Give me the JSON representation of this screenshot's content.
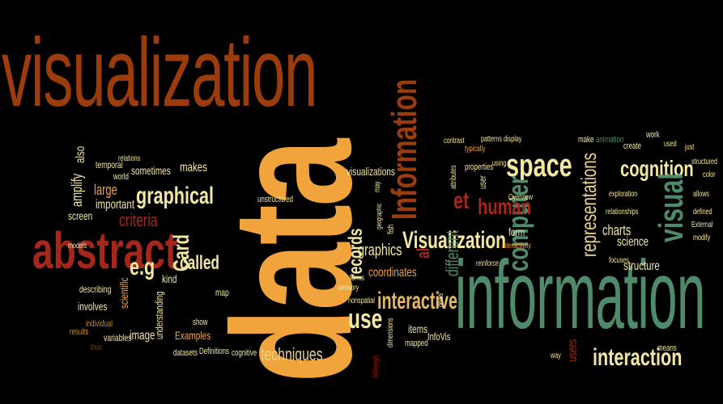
{
  "words": {
    "visualization": "visualization",
    "data": "data",
    "information_big": "information",
    "abstract": "abstract",
    "Information_vert": "Information",
    "Visualization_mid": "Visualization",
    "interactive": "interactive",
    "graphical": "graphical",
    "space": "space",
    "cognition": "cognition",
    "visual_vert": "visual",
    "computer": "computer",
    "representations": "representations",
    "interaction": "interaction",
    "records": "records",
    "human": "human",
    "graphics": "graphics",
    "use": "use",
    "eg": "e.g",
    "called": "called",
    "Card": "Card",
    "criteria": "criteria",
    "techniques": "techniques",
    "et": "et",
    "al": "al",
    "visualizations": "visualizations",
    "structure": "structure",
    "science": "science",
    "charts": "charts",
    "different": "different",
    "coordinates": "coordinates",
    "makes": "makes",
    "sometimes": "sometimes",
    "important": "important",
    "large": "large",
    "amplify": "amplify",
    "also": "also",
    "temporal": "temporal",
    "world": "world",
    "screen": "screen",
    "models": "models",
    "scientific": "scientific",
    "involves": "involves",
    "describing": "describing",
    "results": "results",
    "individual": "individual",
    "variables": "variables",
    "image": "image",
    "understanding": "understanding",
    "Examples": "Examples",
    "datasets": "datasets",
    "Definitions": "Definitions",
    "cognitive": "cognitive",
    "show": "show",
    "map": "map",
    "kind": "kind",
    "unstructured": "unstructured",
    "form": "form",
    "items": "items",
    "InfoVis": "InfoVis",
    "mapped": "mapped",
    "dimensions": "dimensions",
    "users": "users",
    "way": "way",
    "means": "means",
    "exploration": "exploration",
    "relationships": "relationships",
    "focuses": "focuses",
    "interactivity": "interactivity",
    "reinforce": "reinforce",
    "Overview": "Overview",
    "properties": "properties",
    "attributes": "attributes",
    "user": "user",
    "may": "may",
    "using": "using",
    "display": "display",
    "patterns": "patterns",
    "typically": "typically",
    "contrast": "contrast",
    "make": "make",
    "animation": "animation",
    "create": "create",
    "work": "work",
    "used": "used",
    "just": "just",
    "structured": "structured",
    "color": "color",
    "allows": "allows",
    "defined": "defined",
    "External": "External",
    "modify": "modify",
    "forms": "forms",
    "sensory": "sensory",
    "nonspatial": "nonspatial",
    "geographic": "geographic",
    "fish": "fish",
    "relations": "relations",
    "thus": "thus",
    "Although": "Although",
    "deals": "deals"
  },
  "colors": {
    "background": "#000000",
    "rust": "#9c3b0c",
    "orange": "#f0a43b",
    "cream": "#f3e7a4",
    "green": "#4f8a6a",
    "red": "#a5261a"
  }
}
